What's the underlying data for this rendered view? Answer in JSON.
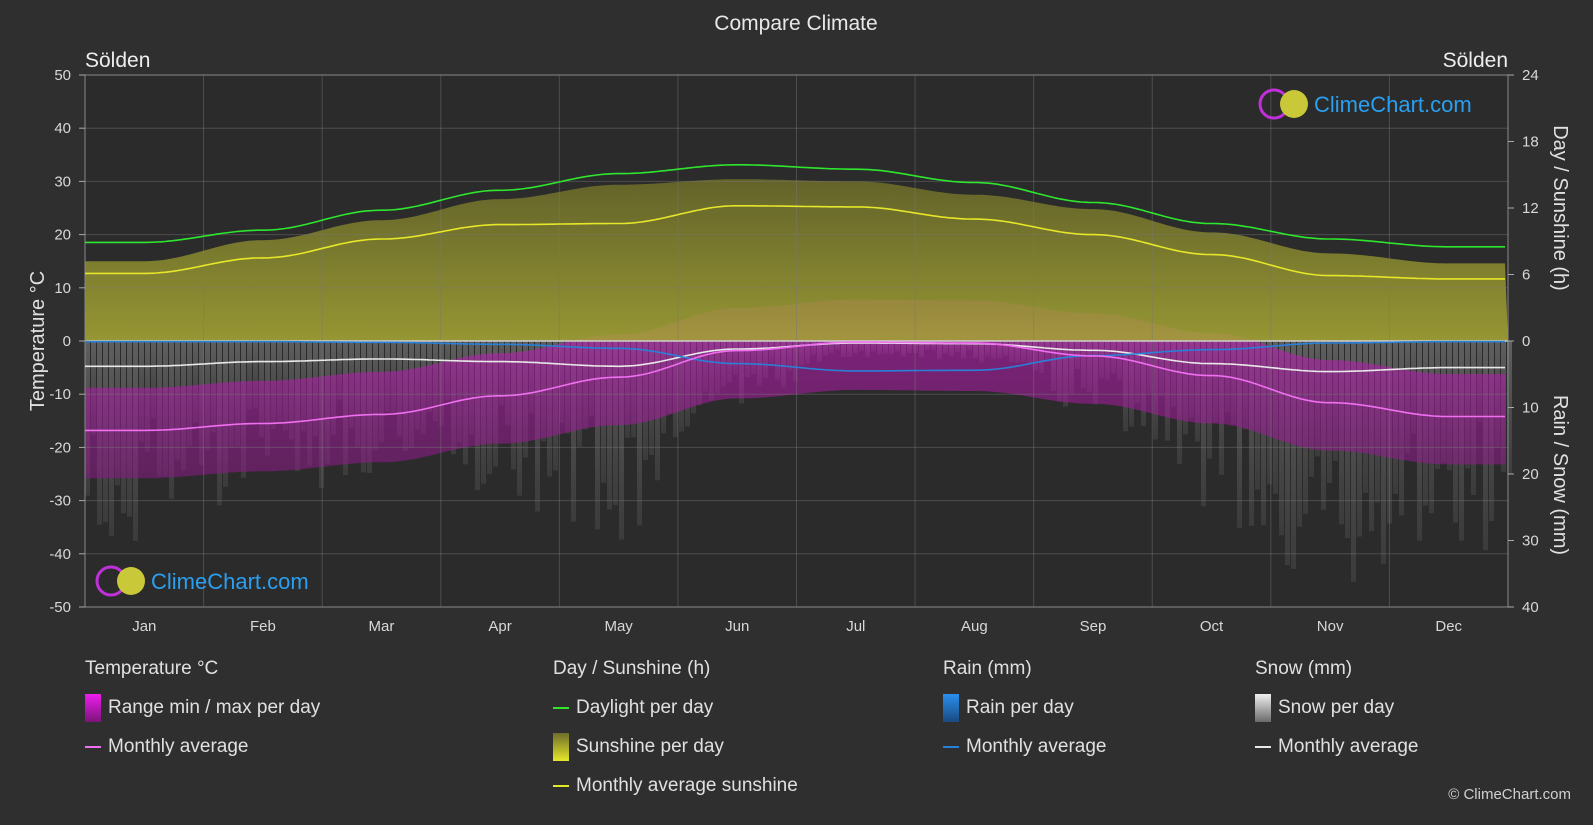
{
  "title": "Compare Climate",
  "location_left": "Sölden",
  "location_right": "Sölden",
  "axis_left_label": "Temperature °C",
  "axis_right_top_label": "Day / Sunshine (h)",
  "axis_right_bottom_label": "Rain / Snow (mm)",
  "watermark": "ClimeChart.com",
  "copyright": "© ClimeChart.com",
  "colors": {
    "background": "#2f2f2f",
    "daylight": "#2ee62e",
    "sunshine_fill": "#b7b735",
    "sunshine_line": "#e6e62a",
    "temp_range": "#d01cc8",
    "temp_line": "#f06ef0",
    "rain": "#2a7fd6",
    "snow": "#cfcfcf",
    "watermark_text": "#2a9ff0"
  },
  "legend": {
    "temperature": {
      "header": "Temperature °C",
      "range": "Range min / max per day",
      "average": "Monthly average"
    },
    "sunshine": {
      "header": "Day / Sunshine (h)",
      "daylight": "Daylight per day",
      "sunshine": "Sunshine per day",
      "average": "Monthly average sunshine"
    },
    "rain": {
      "header": "Rain (mm)",
      "per_day": "Rain per day",
      "average": "Monthly average"
    },
    "snow": {
      "header": "Snow (mm)",
      "per_day": "Snow per day",
      "average": "Monthly average"
    }
  },
  "chart_data": {
    "type": "line",
    "categories": [
      "Jan",
      "Feb",
      "Mar",
      "Apr",
      "May",
      "Jun",
      "Jul",
      "Aug",
      "Sep",
      "Oct",
      "Nov",
      "Dec"
    ],
    "y_left": {
      "label": "Temperature °C",
      "range": [
        -50,
        50
      ],
      "ticks": [
        50,
        40,
        30,
        20,
        10,
        0,
        -10,
        -20,
        -30,
        -40,
        -50
      ]
    },
    "y_right_top": {
      "label": "Day / Sunshine (h)",
      "range": [
        0,
        24
      ],
      "ticks": [
        0,
        6,
        12,
        18,
        24
      ]
    },
    "y_right_bottom": {
      "label": "Rain / Snow (mm)",
      "range": [
        0,
        40
      ],
      "ticks": [
        0,
        10,
        20,
        30,
        40
      ]
    },
    "grid": true,
    "series": [
      {
        "name": "Daylight per day",
        "axis": "sunshine_hours",
        "values": [
          8.9,
          10.0,
          11.8,
          13.6,
          15.1,
          15.9,
          15.5,
          14.3,
          12.5,
          10.6,
          9.2,
          8.5
        ]
      },
      {
        "name": "Sunshine per day",
        "axis": "sunshine_hours",
        "values": [
          7.2,
          9.1,
          10.9,
          12.8,
          14.1,
          14.6,
          14.4,
          13.2,
          11.9,
          9.8,
          7.9,
          7.0
        ]
      },
      {
        "name": "Monthly average sunshine",
        "axis": "sunshine_hours",
        "values": [
          6.1,
          7.5,
          9.2,
          10.5,
          10.6,
          12.2,
          12.1,
          11.0,
          9.6,
          7.8,
          5.9,
          5.6
        ]
      },
      {
        "name": "Monthly average",
        "axis": "temperature_c",
        "values": [
          -16.8,
          -15.5,
          -13.8,
          -10.3,
          -6.8,
          -1.8,
          -0.2,
          -0.4,
          -2.8,
          -6.5,
          -11.6,
          -14.2
        ]
      },
      {
        "name": "Monthly average",
        "axis": "rain_mm",
        "values": [
          0.1,
          0.1,
          0.2,
          0.5,
          1.1,
          3.4,
          4.5,
          4.4,
          2.2,
          1.3,
          0.3,
          0.1
        ]
      },
      {
        "name": "Monthly average",
        "axis": "snow_mm",
        "values": [
          3.8,
          3.1,
          2.7,
          3.1,
          3.8,
          1.2,
          0.3,
          0.4,
          1.4,
          3.4,
          4.6,
          4.0
        ]
      }
    ]
  }
}
